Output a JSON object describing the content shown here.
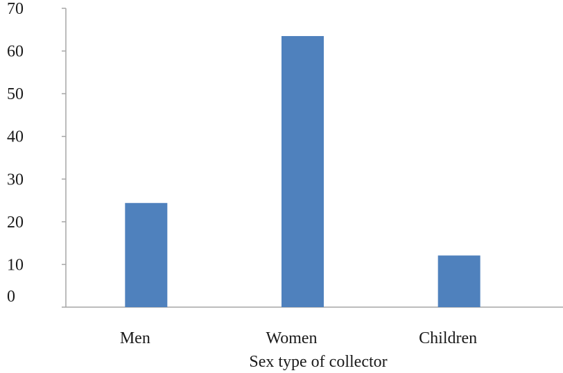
{
  "chart_data": {
    "type": "bar",
    "categories": [
      "Men",
      "Women",
      "Children"
    ],
    "values": [
      24.4,
      63.5,
      12.1
    ],
    "xlabel": "Sex type of collector",
    "ylabel": "",
    "ylim": [
      0,
      70
    ],
    "yticks": [
      "0",
      "10",
      "20",
      "30",
      "40",
      "50",
      "60",
      "70"
    ],
    "grid": false,
    "legend": "none",
    "colors": {
      "bar": "#4f81bd",
      "axis": "#a6a6a6"
    }
  }
}
